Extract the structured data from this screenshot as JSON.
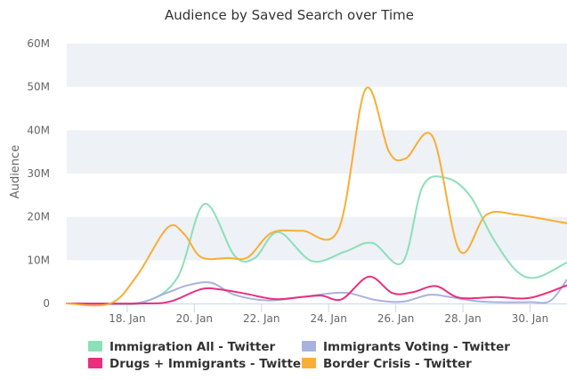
{
  "chart_data": {
    "type": "line",
    "title": "Audience by Saved Search over Time",
    "ylabel": "Audience",
    "xlabel": "",
    "ylim": [
      0,
      60
    ],
    "y_unit": "M",
    "yticks": [
      "0",
      "10M",
      "20M",
      "30M",
      "40M",
      "50M",
      "60M"
    ],
    "y_tick_values": [
      0,
      10,
      20,
      30,
      40,
      50,
      60
    ],
    "xlim": [
      16.2,
      31.1
    ],
    "xticks": [
      "18. Jan",
      "20. Jan",
      "22. Jan",
      "24. Jan",
      "26. Jan",
      "28. Jan",
      "30. Jan"
    ],
    "x_tick_values": [
      18,
      20,
      22,
      24,
      26,
      28,
      30
    ],
    "grid": "alternating horizontal bands",
    "legend_position": "bottom",
    "series": [
      {
        "name": "Immigration All - Twitter",
        "color": "#8ddfb8",
        "points": [
          [
            16.2,
            0
          ],
          [
            17.4,
            0
          ],
          [
            18.5,
            0.3
          ],
          [
            19.5,
            6
          ],
          [
            20.3,
            23
          ],
          [
            21.2,
            11
          ],
          [
            21.8,
            10.5
          ],
          [
            22.5,
            16.5
          ],
          [
            23.5,
            9.8
          ],
          [
            24.5,
            12
          ],
          [
            25.3,
            14
          ],
          [
            26.2,
            9.5
          ],
          [
            26.8,
            27
          ],
          [
            27.5,
            29
          ],
          [
            28.2,
            25
          ],
          [
            28.9,
            15
          ],
          [
            29.6,
            7.5
          ],
          [
            30.2,
            6
          ],
          [
            31.1,
            9.5
          ]
        ]
      },
      {
        "name": "Immigrants Voting - Twitter",
        "color": "#a9b1de",
        "points": [
          [
            16.2,
            0
          ],
          [
            18.2,
            0
          ],
          [
            19.2,
            2.5
          ],
          [
            19.8,
            4.2
          ],
          [
            20.5,
            4.8
          ],
          [
            21.2,
            2
          ],
          [
            22.2,
            0.7
          ],
          [
            23.2,
            1.5
          ],
          [
            24.0,
            2.3
          ],
          [
            24.6,
            2.4
          ],
          [
            25.4,
            0.8
          ],
          [
            26.2,
            0.4
          ],
          [
            27.0,
            2
          ],
          [
            27.6,
            1.5
          ],
          [
            28.6,
            0.4
          ],
          [
            30.0,
            0.3
          ],
          [
            30.6,
            0.6
          ],
          [
            31.1,
            5.5
          ]
        ]
      },
      {
        "name": "Drugs + Immigrants - Twitter",
        "color": "#ea2e7e",
        "points": [
          [
            16.2,
            0
          ],
          [
            18.5,
            0
          ],
          [
            19.3,
            0.5
          ],
          [
            20.2,
            3.3
          ],
          [
            20.8,
            3.2
          ],
          [
            21.5,
            2.3
          ],
          [
            22.4,
            1
          ],
          [
            23.2,
            1.5
          ],
          [
            23.8,
            1.8
          ],
          [
            24.4,
            1
          ],
          [
            25.2,
            6.2
          ],
          [
            25.9,
            2.4
          ],
          [
            26.5,
            2.6
          ],
          [
            27.2,
            4
          ],
          [
            27.9,
            1.3
          ],
          [
            29.0,
            1.5
          ],
          [
            30.0,
            1.3
          ],
          [
            31.1,
            4.2
          ]
        ]
      },
      {
        "name": "Border Crisis - Twitter",
        "color": "#f8ae35",
        "points": [
          [
            16.2,
            0
          ],
          [
            17.5,
            0
          ],
          [
            18.3,
            6.5
          ],
          [
            19.2,
            17.5
          ],
          [
            19.7,
            16
          ],
          [
            20.2,
            10.7
          ],
          [
            21.0,
            10.5
          ],
          [
            21.6,
            10.7
          ],
          [
            22.3,
            16.3
          ],
          [
            23.2,
            16.8
          ],
          [
            24.3,
            17.2
          ],
          [
            25.1,
            49.5
          ],
          [
            25.8,
            35
          ],
          [
            26.3,
            33.5
          ],
          [
            27.1,
            38.5
          ],
          [
            27.9,
            12.2
          ],
          [
            28.7,
            20.5
          ],
          [
            29.6,
            20.5
          ],
          [
            31.1,
            18.5
          ]
        ]
      }
    ]
  },
  "legend": {
    "items": [
      {
        "label": "Immigration All - Twitter",
        "color": "#8ddfb8"
      },
      {
        "label": "Immigrants Voting - Twitter",
        "color": "#a9b1de"
      },
      {
        "label": "Drugs + Immigrants - Twitter",
        "color": "#ea2e7e"
      },
      {
        "label": "Border Crisis - Twitter",
        "color": "#f8ae35"
      }
    ]
  }
}
